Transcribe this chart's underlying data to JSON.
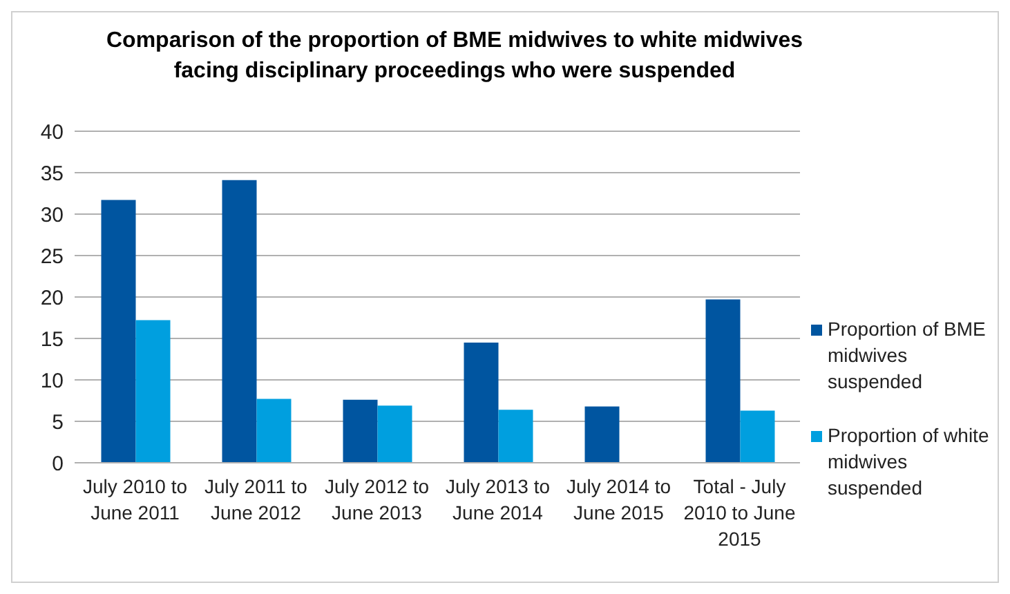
{
  "chart_data": {
    "type": "bar",
    "title": "Comparison of the proportion of BME midwives to white midwives facing disciplinary proceedings who were suspended",
    "categories": [
      "July 2010 to June 2011",
      "July 2011 to June 2012",
      "July 2012 to June 2013",
      "July 2013 to June 2014",
      "July 2014 to June 2015",
      "Total - July 2010 to June 2015"
    ],
    "series": [
      {
        "name": "Proportion of BME midwives suspended",
        "color": "#0055a0",
        "values": [
          31.7,
          34.1,
          7.6,
          14.5,
          6.8,
          19.7
        ]
      },
      {
        "name": "Proportion of white midwives suspended",
        "color": "#009fdf",
        "values": [
          17.2,
          7.7,
          6.9,
          6.4,
          null,
          6.3
        ]
      }
    ],
    "ylim": [
      0,
      40
    ],
    "yticks": [
      0,
      5,
      10,
      15,
      20,
      25,
      30,
      35,
      40
    ],
    "grid": "y",
    "legend": "right"
  }
}
